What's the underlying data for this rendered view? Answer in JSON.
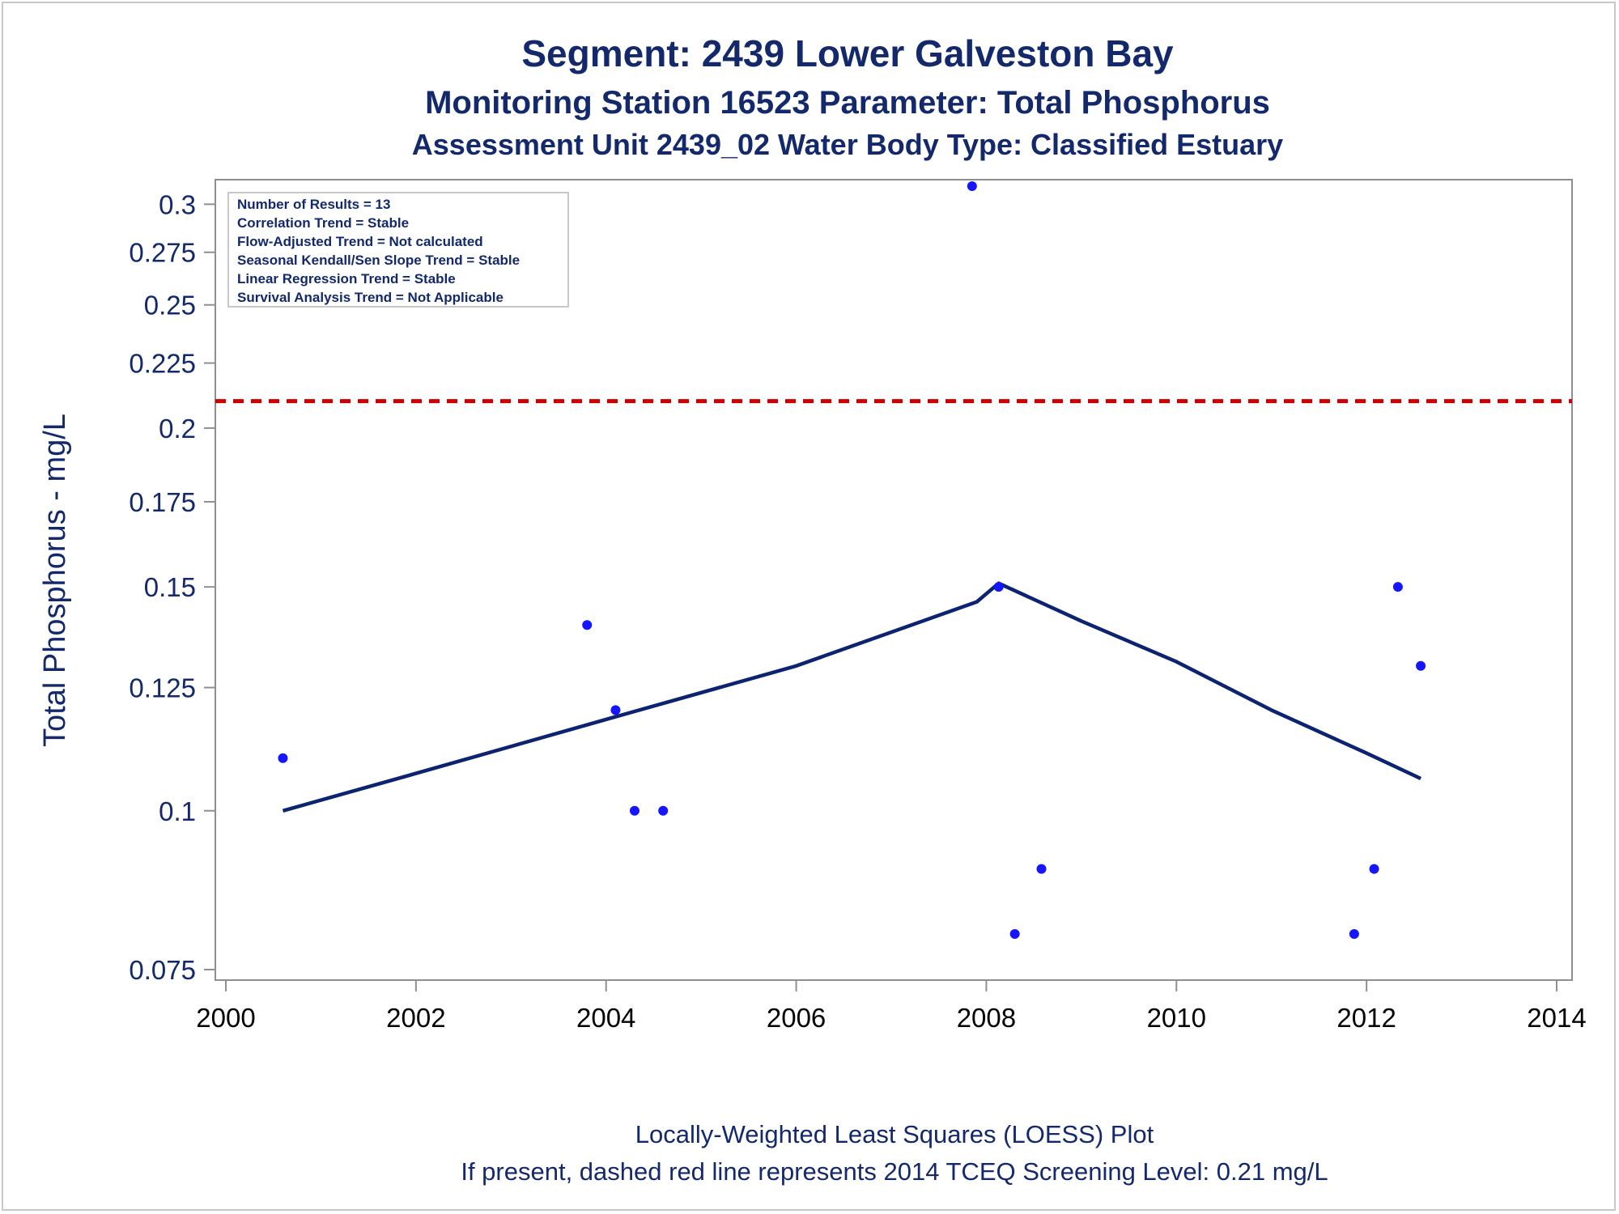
{
  "chart_data": {
    "type": "scatter",
    "title": "Segment: 2439  Lower Galveston Bay",
    "subtitle": "Monitoring Station 16523 Parameter: Total Phosphorus",
    "subtitle2": "Assessment Unit 2439_02   Water Body Type: Classified Estuary",
    "xlabel": "",
    "ylabel": "Total Phosphorus - mg/L",
    "y_scale": "log",
    "xlim": [
      2000,
      2014
    ],
    "ylim": [
      0.075,
      0.31
    ],
    "x_ticks": [
      "2000",
      "2002",
      "2004",
      "2006",
      "2008",
      "2010",
      "2012",
      "2014"
    ],
    "y_ticks": [
      {
        "value": 0.075,
        "label": "0.075"
      },
      {
        "value": 0.1,
        "label": "0.1"
      },
      {
        "value": 0.125,
        "label": "0.125"
      },
      {
        "value": 0.15,
        "label": "0.15"
      },
      {
        "value": 0.175,
        "label": "0.175"
      },
      {
        "value": 0.2,
        "label": "0.2"
      },
      {
        "value": 0.225,
        "label": "0.225"
      },
      {
        "value": 0.25,
        "label": "0.25"
      },
      {
        "value": 0.275,
        "label": "0.275"
      },
      {
        "value": 0.3,
        "label": "0.3"
      }
    ],
    "points": [
      {
        "x": 2000.6,
        "y": 0.11
      },
      {
        "x": 2003.8,
        "y": 0.14
      },
      {
        "x": 2004.1,
        "y": 0.12
      },
      {
        "x": 2004.3,
        "y": 0.1
      },
      {
        "x": 2004.6,
        "y": 0.1
      },
      {
        "x": 2007.85,
        "y": 0.31
      },
      {
        "x": 2008.13,
        "y": 0.15
      },
      {
        "x": 2008.3,
        "y": 0.08
      },
      {
        "x": 2008.58,
        "y": 0.09
      },
      {
        "x": 2011.87,
        "y": 0.08
      },
      {
        "x": 2012.08,
        "y": 0.09
      },
      {
        "x": 2012.33,
        "y": 0.15
      },
      {
        "x": 2012.57,
        "y": 0.13
      }
    ],
    "loess": [
      {
        "x": 2000.6,
        "y": 0.1
      },
      {
        "x": 2002,
        "y": 0.107
      },
      {
        "x": 2004,
        "y": 0.118
      },
      {
        "x": 2006,
        "y": 0.13
      },
      {
        "x": 2007.9,
        "y": 0.146
      },
      {
        "x": 2008.13,
        "y": 0.151
      },
      {
        "x": 2009,
        "y": 0.141
      },
      {
        "x": 2010,
        "y": 0.131
      },
      {
        "x": 2011,
        "y": 0.12
      },
      {
        "x": 2012,
        "y": 0.111
      },
      {
        "x": 2012.57,
        "y": 0.106
      }
    ],
    "reference_line": {
      "y": 0.21,
      "style": "dashed",
      "color": "#cc0000"
    },
    "colors": {
      "points": "#1515ff",
      "loess": "#0b2370",
      "text": "#13296b",
      "axis": "#8f8f8f"
    },
    "stats_box": [
      "Number of Results = 13",
      "Correlation Trend = Stable",
      "Flow-Adjusted Trend = Not calculated",
      "Seasonal Kendall/Sen Slope Trend = Stable",
      "Linear Regression Trend = Stable",
      "Survival Analysis Trend = Not Applicable"
    ],
    "footnotes": [
      "Locally-Weighted Least Squares (LOESS) Plot",
      "If present, dashed red line represents 2014 TCEQ Screening Level: 0.21 mg/L"
    ]
  }
}
